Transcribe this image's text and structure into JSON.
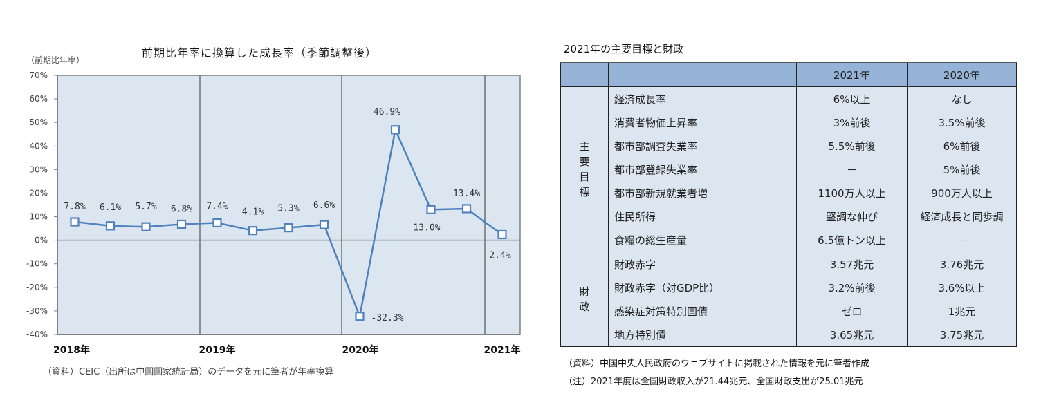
{
  "chart_data": {
    "type": "line",
    "title": "前期比年率に換算した成長率（季節調整後）",
    "ylabel": "（前期比年率）",
    "xlabel": "",
    "ylim": [
      -40,
      70
    ],
    "yticks": [
      "70%",
      "60%",
      "50%",
      "40%",
      "30%",
      "20%",
      "10%",
      "0%",
      "-10%",
      "-20%",
      "-30%",
      "-40%"
    ],
    "xtick_labels": [
      "2018年",
      "2019年",
      "2020年",
      "2021年"
    ],
    "grid": "vertical year separators",
    "legend": null,
    "series": [
      {
        "name": "成長率",
        "color": "#4f81bd",
        "x": [
          "2018Q1",
          "2018Q2",
          "2018Q3",
          "2018Q4",
          "2019Q1",
          "2019Q2",
          "2019Q3",
          "2019Q4",
          "2020Q1",
          "2020Q2",
          "2020Q3",
          "2020Q4",
          "2021Q1"
        ],
        "values": [
          7.8,
          6.1,
          5.7,
          6.8,
          7.4,
          4.1,
          5.3,
          6.6,
          -32.3,
          46.9,
          13.0,
          13.4,
          2.4
        ],
        "labels": [
          "7.8%",
          "6.1%",
          "5.7%",
          "6.8%",
          "7.4%",
          "4.1%",
          "5.3%",
          "6.6%",
          "-32.3%",
          "46.9%",
          "13.0%",
          "13.4%",
          "2.4%"
        ]
      }
    ],
    "source": "（資料）CEIC（出所は中国国家統計局）のデータを元に筆者が年率換算"
  },
  "table": {
    "title": "2021年の主要目標と財政",
    "headers": [
      "",
      "",
      "2021年",
      "2020年"
    ],
    "groups": [
      {
        "name": "主要目標",
        "chars": [
          "主",
          "要",
          "目",
          "標"
        ],
        "rows": [
          {
            "item": "経済成長率",
            "y2021": "6%以上",
            "y2020": "なし"
          },
          {
            "item": "消費者物価上昇率",
            "y2021": "3%前後",
            "y2020": "3.5%前後"
          },
          {
            "item": "都市部調査失業率",
            "y2021": "5.5%前後",
            "y2020": "6%前後"
          },
          {
            "item": "都市部登録失業率",
            "y2021": "－",
            "y2020": "5%前後"
          },
          {
            "item": "都市部新規就業者増",
            "y2021": "1100万人以上",
            "y2020": "900万人以上"
          },
          {
            "item": "住民所得",
            "y2021": "堅調な伸び",
            "y2020": "経済成長と同歩調"
          },
          {
            "item": "食糧の総生産量",
            "y2021": "6.5億トン以上",
            "y2020": "－"
          }
        ]
      },
      {
        "name": "財政",
        "chars": [
          "財",
          "政"
        ],
        "rows": [
          {
            "item": "財政赤字",
            "y2021": "3.57兆元",
            "y2020": "3.76兆元"
          },
          {
            "item": "財政赤字（対GDP比）",
            "y2021": "3.2%前後",
            "y2020": "3.6%以上"
          },
          {
            "item": "感染症対策特別国債",
            "y2021": "ゼロ",
            "y2020": "1兆元"
          },
          {
            "item": "地方特別債",
            "y2021": "3.65兆元",
            "y2020": "3.75兆元"
          }
        ]
      }
    ],
    "notes": [
      "（資料）中国中央人民政府のウェブサイトに掲載された情報を元に筆者作成",
      "（注）2021年度は全国財政収入が21.44兆元、全国財政支出が25.01兆元"
    ]
  },
  "colors": {
    "plot_bg": "#dce6f1",
    "line": "#4f81bd",
    "header_bg": "#95b3d7",
    "cell_bg": "#dce6f1"
  }
}
